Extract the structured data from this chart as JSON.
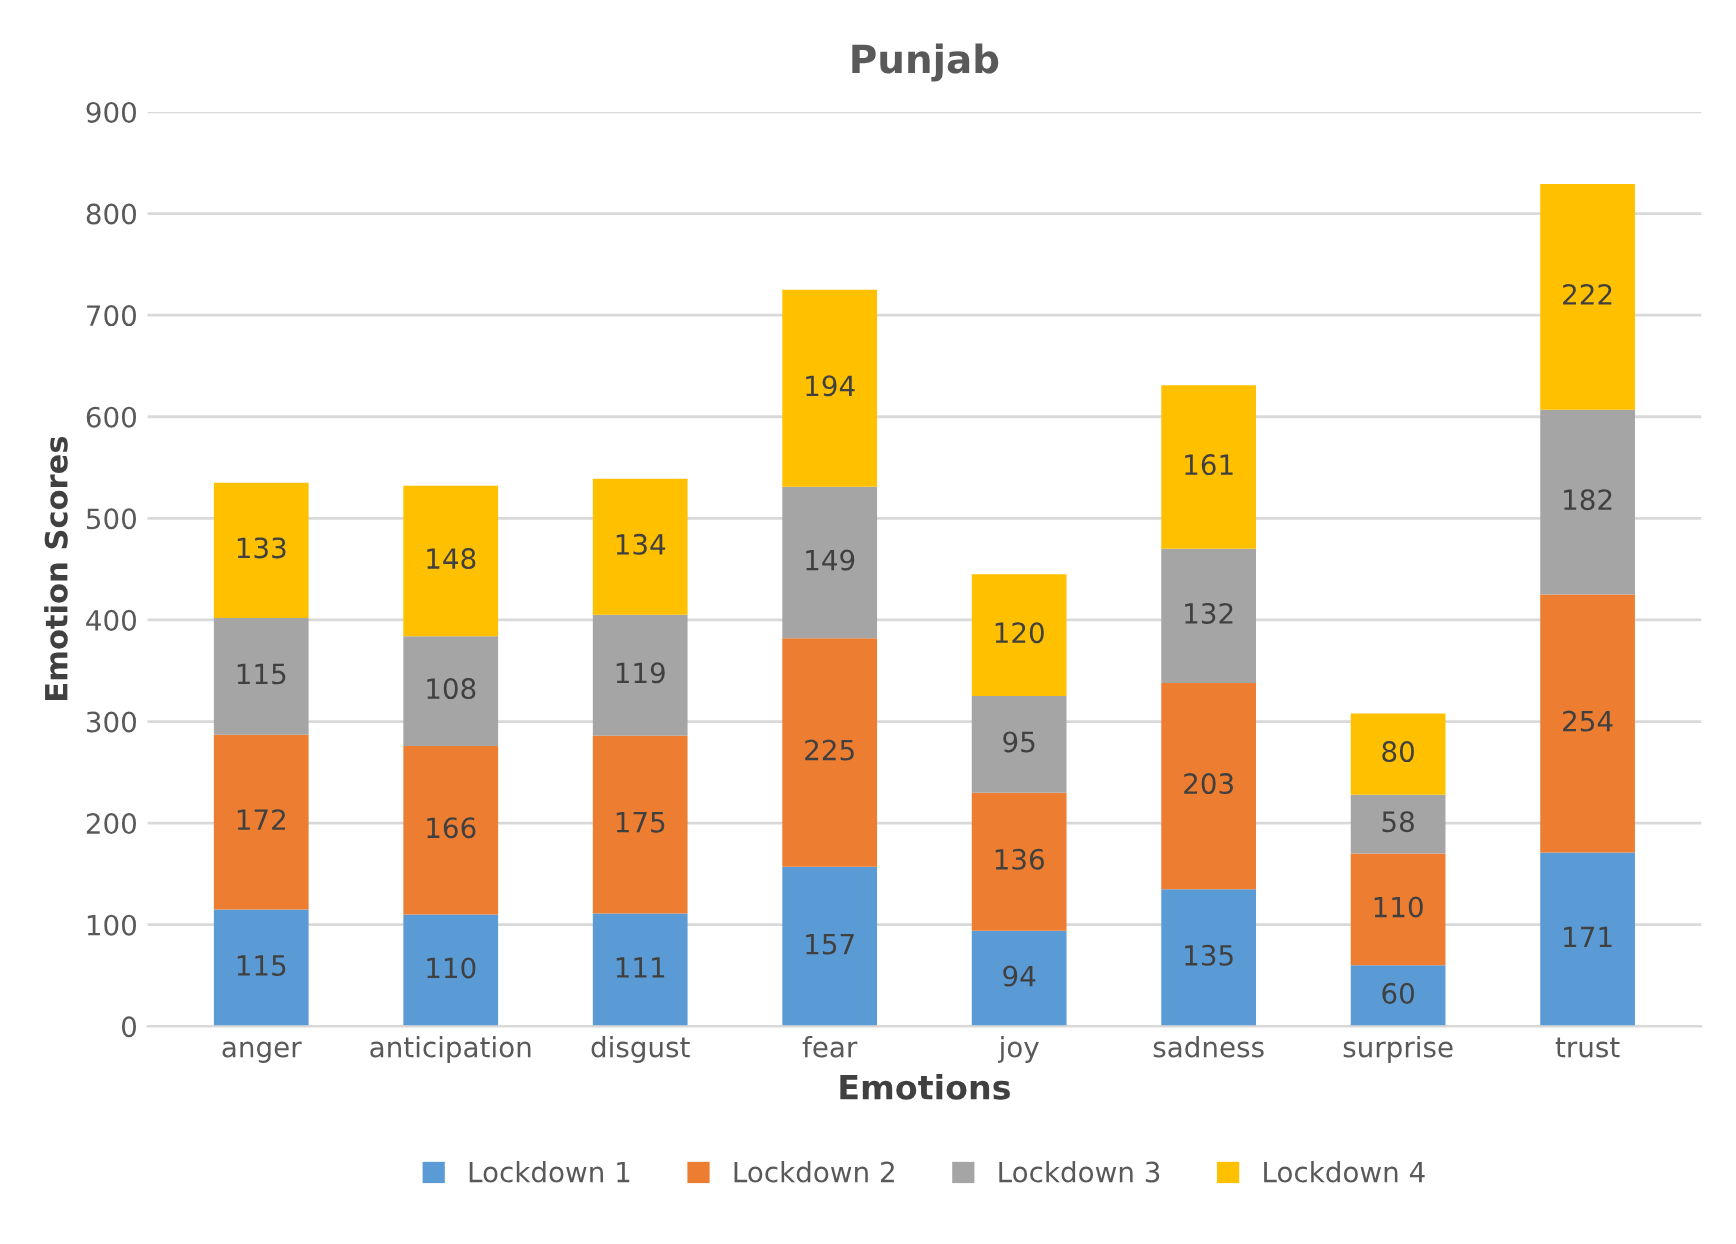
{
  "chart_data": {
    "type": "bar",
    "title": "Punjab",
    "xlabel": "Emotions",
    "ylabel": "Emotion Scores",
    "categories": [
      "anger",
      "anticipation",
      "disgust",
      "fear",
      "joy",
      "sadness",
      "surprise",
      "trust"
    ],
    "series": [
      {
        "name": "Lockdown 1",
        "color": "#5b9bd5",
        "values": [
          115,
          110,
          111,
          157,
          94,
          135,
          60,
          171
        ]
      },
      {
        "name": "Lockdown 2",
        "color": "#ed7d31",
        "values": [
          172,
          166,
          175,
          225,
          136,
          203,
          110,
          254
        ]
      },
      {
        "name": "Lockdown 3",
        "color": "#a5a5a5",
        "values": [
          115,
          108,
          119,
          149,
          95,
          132,
          58,
          182
        ]
      },
      {
        "name": "Lockdown 4",
        "color": "#ffc000",
        "values": [
          133,
          148,
          134,
          194,
          120,
          161,
          80,
          222
        ]
      }
    ],
    "stacked": true,
    "data_labels": true,
    "ylim": [
      0,
      900
    ],
    "yticks": [
      0,
      100,
      200,
      300,
      400,
      500,
      600,
      700,
      800,
      900
    ],
    "grid": "y",
    "legend": "bottom"
  }
}
